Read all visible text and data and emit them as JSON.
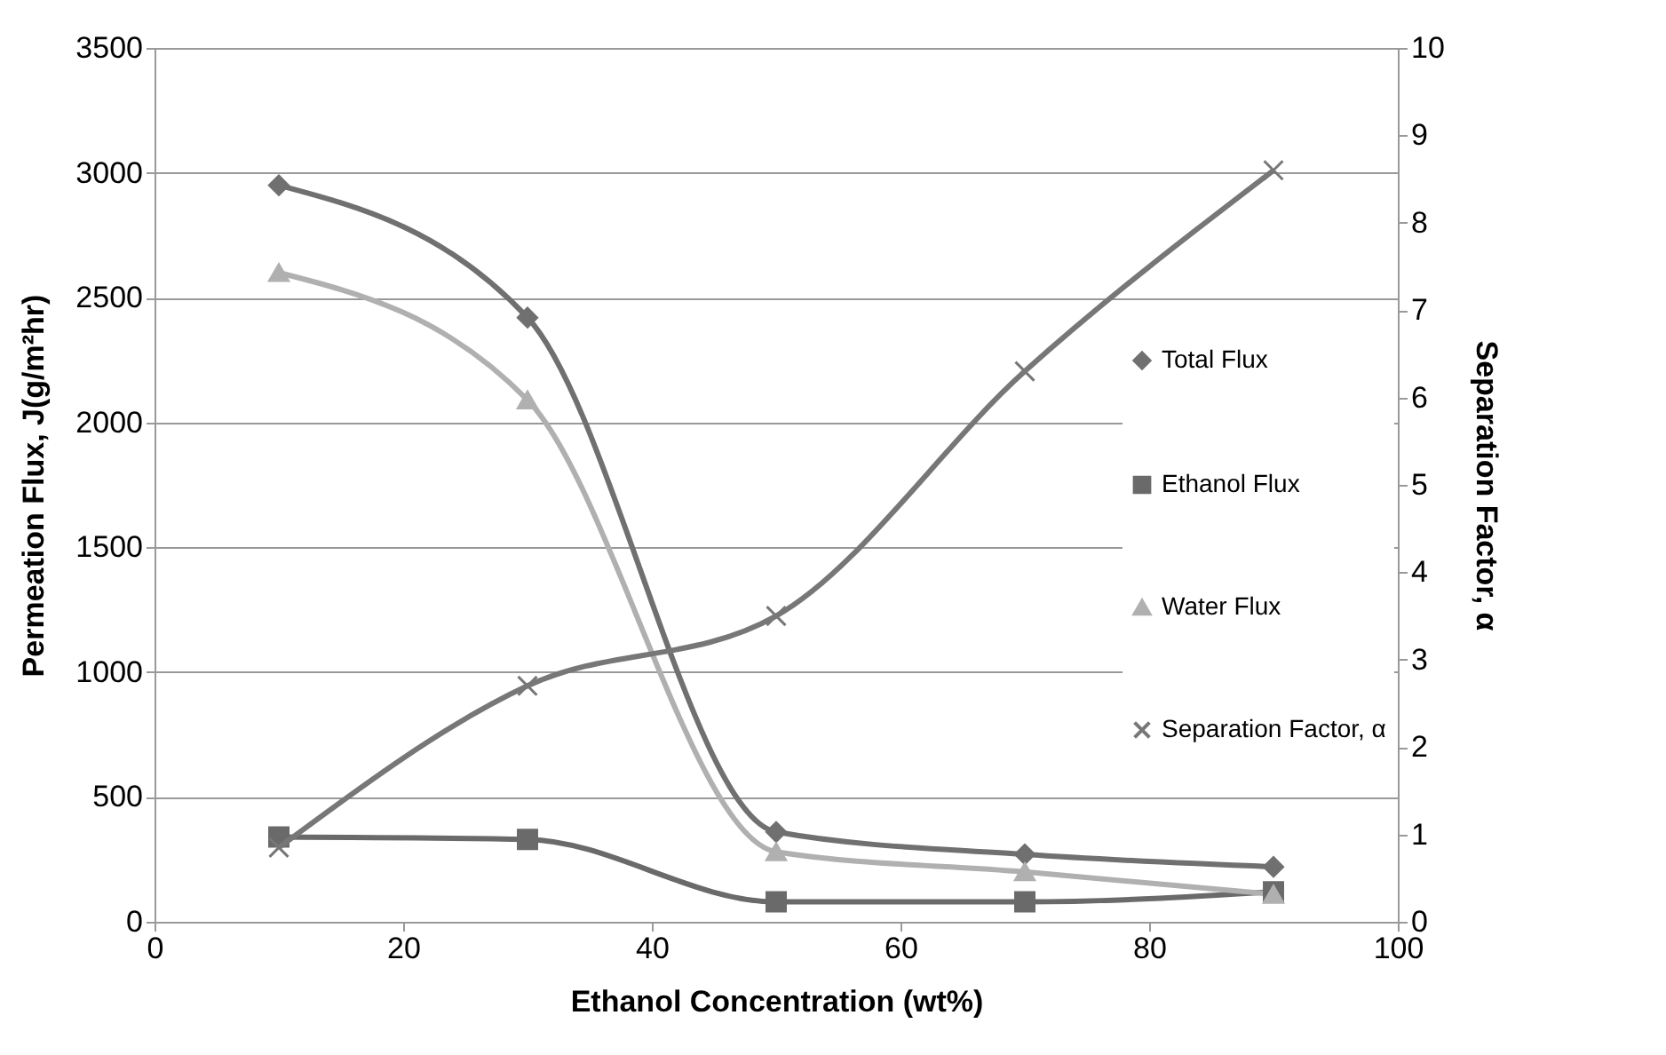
{
  "chart_data": {
    "type": "line",
    "xlabel": "Ethanol Concentration (wt%)",
    "ylabel": "Permeation Flux, J(g/m²hr)",
    "y2label": "Separation Factor, α",
    "x": [
      10,
      30,
      50,
      70,
      90
    ],
    "series": [
      {
        "name": "Total Flux",
        "color": "#707070",
        "marker": "diamond",
        "values": [
          2950,
          2420,
          360,
          270,
          220
        ]
      },
      {
        "name": "Ethanol Flux",
        "color": "#6a6a6a",
        "marker": "square",
        "values": [
          340,
          330,
          80,
          80,
          120
        ]
      },
      {
        "name": "Water Flux",
        "color": "#b0b0b0",
        "marker": "triangle",
        "values": [
          2600,
          2090,
          280,
          200,
          110
        ]
      },
      {
        "name": "Separation Factor, α",
        "color": "#777777",
        "marker": "cross",
        "axis": "y2",
        "values": [
          0.85,
          2.7,
          3.5,
          6.3,
          8.6
        ]
      }
    ],
    "xlim": [
      0,
      100
    ],
    "xticks": [
      0,
      20,
      40,
      60,
      80,
      100
    ],
    "ylim": [
      0,
      3500
    ],
    "yticks": [
      0,
      500,
      1000,
      1500,
      2000,
      2500,
      3000,
      3500
    ],
    "y2lim": [
      0,
      10
    ],
    "y2ticks": [
      0,
      1,
      2,
      3,
      4,
      5,
      6,
      7,
      8,
      9,
      10
    ],
    "grid": "y",
    "legend": "right",
    "line_style": "solid"
  }
}
